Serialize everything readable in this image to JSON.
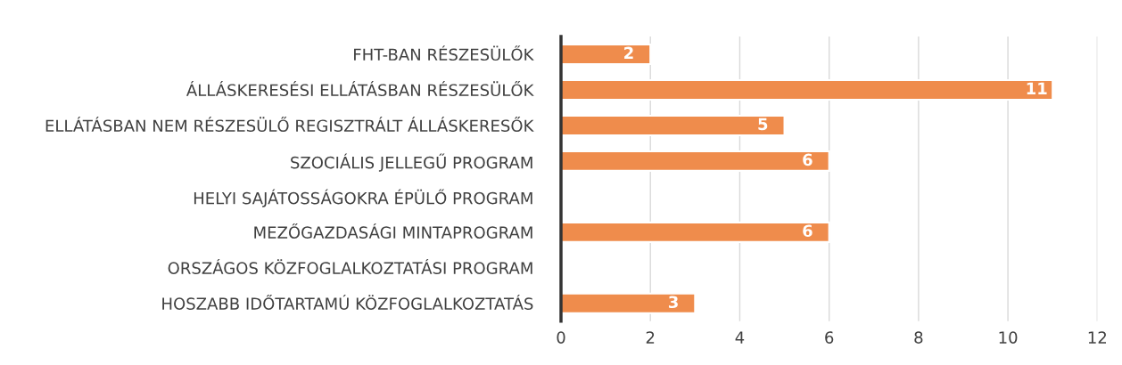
{
  "chart_data": {
    "type": "bar",
    "orientation": "horizontal",
    "categories": [
      "FHT-BAN RÉSZESÜLŐK",
      "ÁLLÁSKERESÉSI ELLÁTÁSBAN RÉSZESÜLŐK",
      "ELLÁTÁSBAN NEM RÉSZESÜLŐ REGISZTRÁLT ÁLLÁSKERESŐK",
      "SZOCIÁLIS JELLEGŰ PROGRAM",
      "HELYI SAJÁTOSSÁGOKRA ÉPÜLŐ PROGRAM",
      "MEZŐGAZDASÁGI MINTAPROGRAM",
      "ORSZÁGOS KÖZFOGLALKOZTATÁSI PROGRAM",
      "HOSZABB IDŐTARTAMÚ KÖZFOGLALKOZTATÁS"
    ],
    "values": [
      2,
      11,
      5,
      6,
      null,
      6,
      null,
      3
    ],
    "color": "#ef8c4c",
    "xlim": [
      0,
      12
    ],
    "xticks": [
      0,
      2,
      4,
      6,
      8,
      10,
      12
    ],
    "grid": "x",
    "data_labels": true
  }
}
